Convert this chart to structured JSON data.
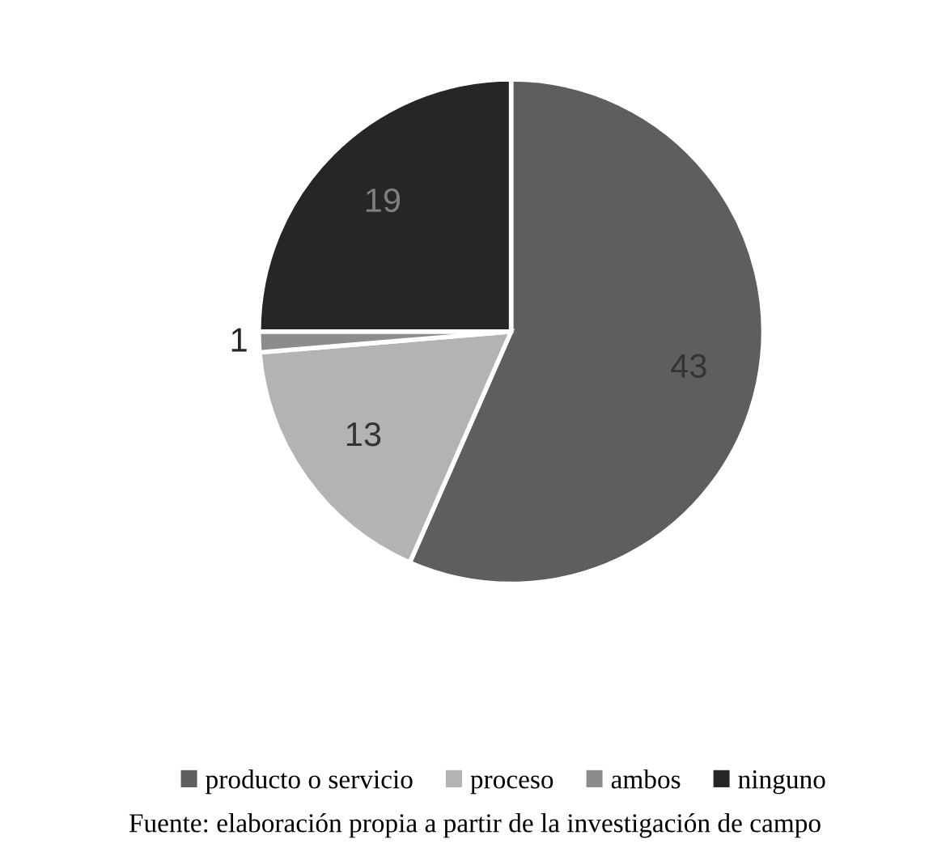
{
  "chart_data": {
    "type": "pie",
    "categories": [
      "producto o servicio",
      "proceso",
      "ambos",
      "ninguno"
    ],
    "values": [
      43,
      13,
      1,
      19
    ],
    "colors": [
      "#5e5e5e",
      "#b3b3b3",
      "#8c8c8c",
      "#262626"
    ],
    "data_labels": true,
    "legend": "bottom",
    "annotations": [
      "Fuente: elaboración propia a partir de la investigación de campo"
    ]
  }
}
